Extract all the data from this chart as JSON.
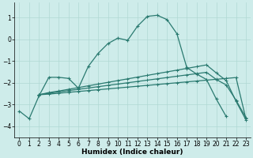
{
  "xlabel": "Humidex (Indice chaleur)",
  "xlim": [
    -0.5,
    23.5
  ],
  "ylim": [
    -4.5,
    1.7
  ],
  "yticks": [
    -4,
    -3,
    -2,
    -1,
    0,
    1
  ],
  "xticks": [
    0,
    1,
    2,
    3,
    4,
    5,
    6,
    7,
    8,
    9,
    10,
    11,
    12,
    13,
    14,
    15,
    16,
    17,
    18,
    19,
    20,
    21,
    22,
    23
  ],
  "background_color": "#ceecea",
  "grid_color": "#b0d8d4",
  "line_color": "#2a7a70",
  "lines": [
    {
      "x": [
        0,
        1,
        2,
        3,
        4,
        5,
        6,
        7,
        8,
        9,
        10,
        11,
        12,
        13,
        14,
        15,
        16,
        17,
        18,
        19,
        20,
        21
      ],
      "y": [
        -3.3,
        -3.65,
        -2.6,
        -1.75,
        -1.75,
        -1.8,
        -2.25,
        -1.25,
        -0.65,
        -0.2,
        0.05,
        -0.05,
        0.6,
        1.05,
        1.1,
        0.9,
        0.25,
        -1.3,
        -1.6,
        -1.85,
        -2.75,
        -3.55
      ]
    },
    {
      "x": [
        2,
        3,
        4,
        5,
        6,
        7,
        8,
        9,
        10,
        11,
        12,
        13,
        14,
        15,
        16,
        17,
        18,
        19,
        20,
        21,
        22,
        23
      ],
      "y": [
        -2.55,
        -2.45,
        -2.38,
        -2.3,
        -2.22,
        -2.14,
        -2.06,
        -1.98,
        -1.9,
        -1.82,
        -1.74,
        -1.66,
        -1.58,
        -1.5,
        -1.42,
        -1.34,
        -1.26,
        -1.18,
        -1.55,
        -1.9,
        -2.85,
        -3.7
      ]
    },
    {
      "x": [
        2,
        3,
        4,
        5,
        6,
        7,
        8,
        9,
        10,
        11,
        12,
        13,
        14,
        15,
        16,
        17,
        18,
        19,
        20,
        21,
        22,
        23
      ],
      "y": [
        -2.55,
        -2.48,
        -2.42,
        -2.36,
        -2.3,
        -2.24,
        -2.18,
        -2.12,
        -2.06,
        -2.0,
        -1.94,
        -1.88,
        -1.82,
        -1.76,
        -1.7,
        -1.64,
        -1.58,
        -1.52,
        -1.85,
        -2.1,
        -2.8,
        -3.6
      ]
    },
    {
      "x": [
        2,
        3,
        4,
        5,
        6,
        7,
        8,
        9,
        10,
        11,
        12,
        13,
        14,
        15,
        16,
        17,
        18,
        19,
        20,
        21,
        22,
        23
      ],
      "y": [
        -2.55,
        -2.52,
        -2.48,
        -2.44,
        -2.4,
        -2.36,
        -2.32,
        -2.28,
        -2.24,
        -2.2,
        -2.16,
        -2.12,
        -2.08,
        -2.04,
        -2.0,
        -1.96,
        -1.92,
        -1.88,
        -1.84,
        -1.8,
        -1.76,
        -3.65
      ]
    }
  ]
}
